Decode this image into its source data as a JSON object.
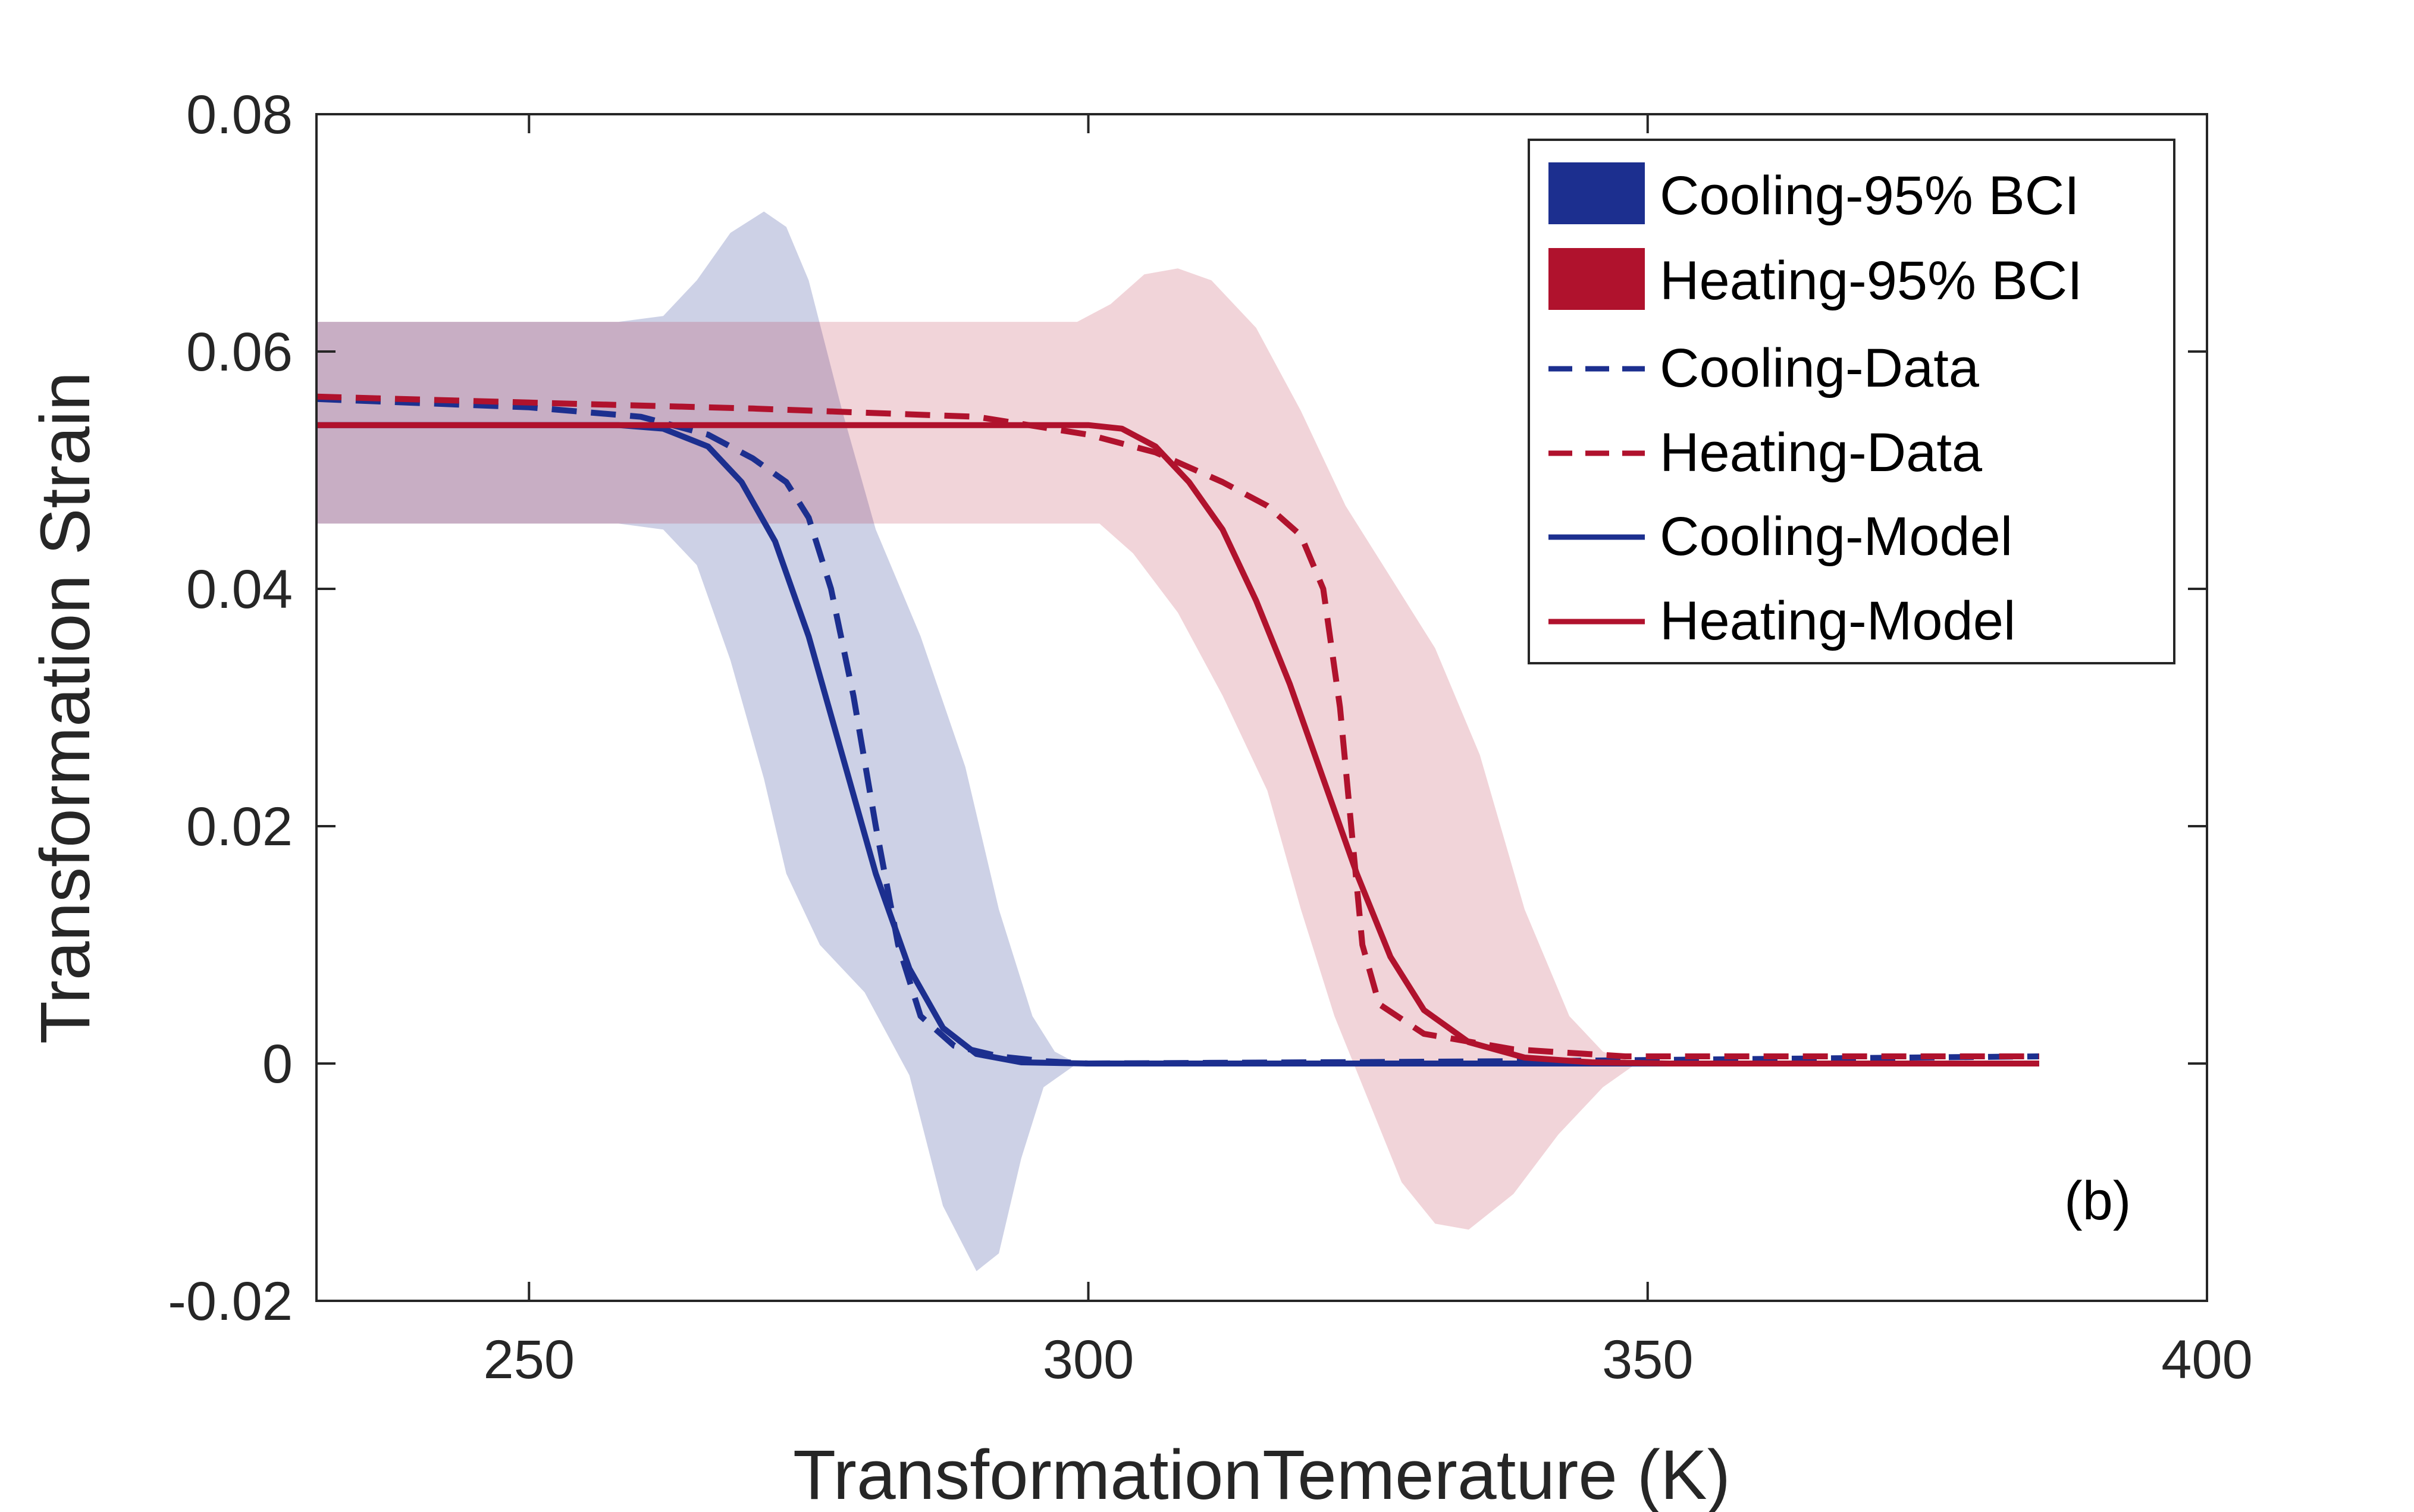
{
  "chart_data": {
    "type": "line",
    "title": "",
    "xlabel": "TransformationTemerature (K)",
    "ylabel": "Transformation Strain",
    "xlim": [
      231,
      400
    ],
    "ylim": [
      -0.02,
      0.08
    ],
    "xticks": [
      250,
      300,
      350,
      400
    ],
    "xtick_labels": [
      "250",
      "300",
      "350",
      "400"
    ],
    "yticks": [
      -0.02,
      0,
      0.02,
      0.04,
      0.06,
      0.08
    ],
    "ytick_labels": [
      "-0.02",
      "0",
      "0.02",
      "0.04",
      "0.06",
      "0.08"
    ],
    "grid": false,
    "legend_position": "top-right",
    "annotation": "(b)",
    "bands": [
      {
        "name": "Cooling-95% BCI",
        "color": "#1c2f8f",
        "opacity": 0.22,
        "upper": [
          [
            231,
            0.0625
          ],
          [
            258,
            0.0625
          ],
          [
            262,
            0.063
          ],
          [
            265,
            0.066
          ],
          [
            268,
            0.07
          ],
          [
            271,
            0.0718
          ],
          [
            273,
            0.0705
          ],
          [
            275,
            0.066
          ],
          [
            278,
            0.055
          ],
          [
            281,
            0.045
          ],
          [
            285,
            0.036
          ],
          [
            289,
            0.025
          ],
          [
            292,
            0.013
          ],
          [
            295,
            0.004
          ],
          [
            297,
            0.001
          ],
          [
            299,
            0.0
          ]
        ],
        "lower": [
          [
            231,
            0.0455
          ],
          [
            258,
            0.0455
          ],
          [
            262,
            0.045
          ],
          [
            265,
            0.042
          ],
          [
            268,
            0.034
          ],
          [
            271,
            0.024
          ],
          [
            273,
            0.016
          ],
          [
            276,
            0.01
          ],
          [
            280,
            0.006
          ],
          [
            284,
            -0.001
          ],
          [
            287,
            -0.012
          ],
          [
            290,
            -0.0175
          ],
          [
            292,
            -0.016
          ],
          [
            294,
            -0.008
          ],
          [
            296,
            -0.002
          ],
          [
            299,
            0.0
          ]
        ]
      },
      {
        "name": "Heating-95% BCI",
        "color": "#b0122d",
        "opacity": 0.18,
        "upper": [
          [
            231,
            0.0625
          ],
          [
            299,
            0.0625
          ],
          [
            302,
            0.064
          ],
          [
            305,
            0.0665
          ],
          [
            308,
            0.067
          ],
          [
            311,
            0.066
          ],
          [
            315,
            0.062
          ],
          [
            319,
            0.055
          ],
          [
            323,
            0.047
          ],
          [
            327,
            0.041
          ],
          [
            331,
            0.035
          ],
          [
            335,
            0.026
          ],
          [
            339,
            0.013
          ],
          [
            343,
            0.004
          ],
          [
            346,
            0.001
          ],
          [
            349,
            0.0
          ]
        ],
        "lower": [
          [
            231,
            0.0455
          ],
          [
            301,
            0.0455
          ],
          [
            304,
            0.043
          ],
          [
            308,
            0.038
          ],
          [
            312,
            0.031
          ],
          [
            316,
            0.023
          ],
          [
            319,
            0.013
          ],
          [
            322,
            0.004
          ],
          [
            325,
            -0.003
          ],
          [
            328,
            -0.01
          ],
          [
            331,
            -0.0135
          ],
          [
            334,
            -0.014
          ],
          [
            338,
            -0.011
          ],
          [
            342,
            -0.006
          ],
          [
            346,
            -0.002
          ],
          [
            349,
            0.0
          ]
        ]
      }
    ],
    "series": [
      {
        "name": "Cooling-Data",
        "color": "#1c2f8f",
        "style": "dashed",
        "points": [
          [
            231,
            0.056
          ],
          [
            250,
            0.0553
          ],
          [
            260,
            0.0545
          ],
          [
            266,
            0.053
          ],
          [
            270,
            0.051
          ],
          [
            273,
            0.049
          ],
          [
            275,
            0.046
          ],
          [
            277,
            0.04
          ],
          [
            279,
            0.031
          ],
          [
            281,
            0.02
          ],
          [
            283,
            0.01
          ],
          [
            285,
            0.004
          ],
          [
            288,
            0.0015
          ],
          [
            292,
            0.0006
          ],
          [
            296,
            0.0002
          ],
          [
            300,
            0.0
          ],
          [
            340,
            0.0002
          ],
          [
            385,
            0.0006
          ]
        ]
      },
      {
        "name": "Heating-Data",
        "color": "#b0122d",
        "style": "dashed",
        "points": [
          [
            231,
            0.0562
          ],
          [
            250,
            0.0557
          ],
          [
            270,
            0.0552
          ],
          [
            290,
            0.0545
          ],
          [
            300,
            0.053
          ],
          [
            306,
            0.0515
          ],
          [
            312,
            0.049
          ],
          [
            316,
            0.047
          ],
          [
            319,
            0.0445
          ],
          [
            321,
            0.04
          ],
          [
            322.5,
            0.03
          ],
          [
            323.5,
            0.02
          ],
          [
            324.5,
            0.01
          ],
          [
            326,
            0.005
          ],
          [
            330,
            0.0025
          ],
          [
            338,
            0.0012
          ],
          [
            348,
            0.0006
          ],
          [
            385,
            0.0006
          ]
        ]
      },
      {
        "name": "Cooling-Model",
        "color": "#1c2f8f",
        "style": "solid",
        "points": [
          [
            231,
            0.0538
          ],
          [
            258,
            0.0538
          ],
          [
            262,
            0.0535
          ],
          [
            266,
            0.052
          ],
          [
            269,
            0.049
          ],
          [
            272,
            0.044
          ],
          [
            275,
            0.036
          ],
          [
            278,
            0.026
          ],
          [
            281,
            0.016
          ],
          [
            284,
            0.008
          ],
          [
            287,
            0.003
          ],
          [
            290,
            0.0008
          ],
          [
            294,
            0.0001
          ],
          [
            300,
            0.0
          ],
          [
            385,
            0.0
          ]
        ]
      },
      {
        "name": "Heating-Model",
        "color": "#b0122d",
        "style": "solid",
        "points": [
          [
            231,
            0.0538
          ],
          [
            300,
            0.0538
          ],
          [
            303,
            0.0535
          ],
          [
            306,
            0.052
          ],
          [
            309,
            0.049
          ],
          [
            312,
            0.045
          ],
          [
            315,
            0.039
          ],
          [
            318,
            0.032
          ],
          [
            321,
            0.024
          ],
          [
            324,
            0.016
          ],
          [
            327,
            0.009
          ],
          [
            330,
            0.0045
          ],
          [
            334,
            0.0018
          ],
          [
            339,
            0.0005
          ],
          [
            345,
            0.0001
          ],
          [
            352,
            0.0
          ],
          [
            385,
            0.0
          ]
        ]
      }
    ]
  }
}
